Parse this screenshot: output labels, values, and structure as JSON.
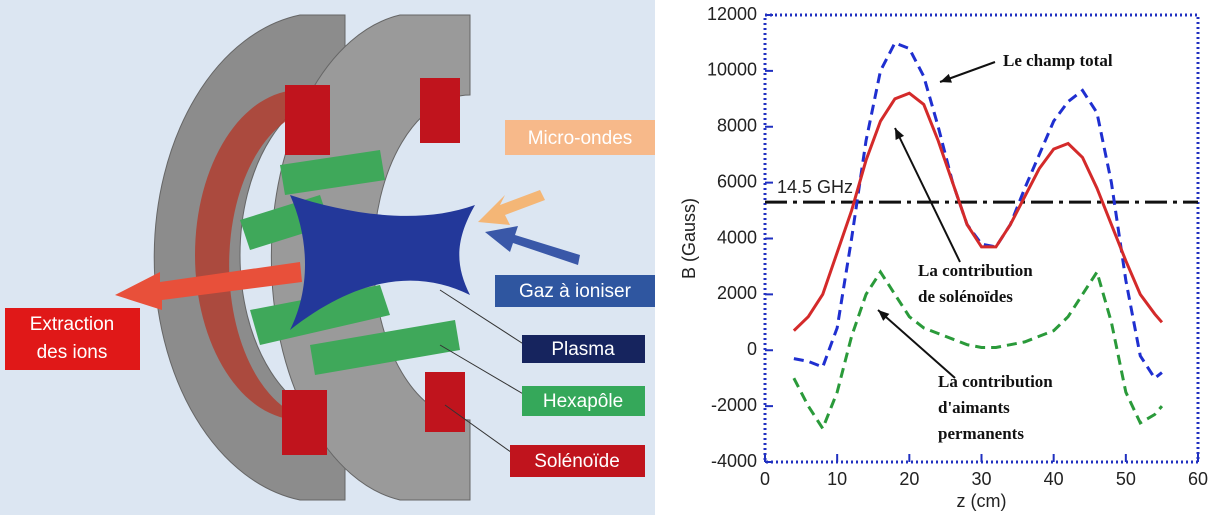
{
  "diagram": {
    "labels": {
      "microwaves": "Micro-ondes",
      "gas": "Gaz à ioniser",
      "plasma": "Plasma",
      "hexapole": "Hexapôle",
      "solenoid": "Solénoïde",
      "extraction": [
        "Extraction",
        "des ions"
      ]
    }
  },
  "chart_data": {
    "type": "line",
    "x_label": "z (cm)",
    "y_label": "B (Gauss)",
    "x": [
      4,
      6,
      8,
      10,
      12,
      14,
      16,
      18,
      20,
      22,
      24,
      26,
      28,
      30,
      32,
      34,
      36,
      38,
      40,
      42,
      44,
      46,
      48,
      50,
      52,
      54,
      55
    ],
    "series": [
      {
        "name": "Le champ total",
        "color": "#1f2fd0",
        "style": "dashed",
        "values": [
          -300,
          -400,
          -600,
          800,
          4000,
          7500,
          10000,
          11000,
          10800,
          9800,
          8000,
          6000,
          4500,
          3800,
          3700,
          4500,
          5800,
          7000,
          8200,
          8900,
          9300,
          8500,
          6000,
          2500,
          -200,
          -1000,
          -800
        ]
      },
      {
        "name": "La contribution de solénoïdes",
        "color": "#d42a2a",
        "style": "solid",
        "values": [
          700,
          1200,
          2000,
          3500,
          5000,
          6800,
          8200,
          9000,
          9200,
          8800,
          7500,
          6000,
          4500,
          3700,
          3700,
          4500,
          5500,
          6500,
          7200,
          7400,
          6900,
          5800,
          4500,
          3200,
          2000,
          1300,
          1000
        ]
      },
      {
        "name": "La contribution d'aimants permanents",
        "color": "#2a9a3a",
        "style": "dashed",
        "values": [
          -1000,
          -2000,
          -2800,
          -1500,
          500,
          2000,
          2800,
          2000,
          1200,
          800,
          600,
          400,
          200,
          100,
          100,
          200,
          300,
          500,
          700,
          1200,
          2000,
          2800,
          1000,
          -1500,
          -2600,
          -2300,
          -2000
        ]
      }
    ],
    "annotations": [
      [
        "Le champ total"
      ],
      [
        "La contribution",
        "de solénoïdes"
      ],
      [
        "La contribution",
        "d'aimants",
        "permanents"
      ]
    ],
    "hlines": [
      {
        "value": 5300,
        "label": "14.5 GHz"
      }
    ],
    "xlim": [
      0,
      60
    ],
    "xticks": [
      0,
      10,
      20,
      30,
      40,
      50,
      60
    ],
    "ylim": [
      -4000,
      12000
    ],
    "yticks": [
      -4000,
      -2000,
      0,
      2000,
      4000,
      6000,
      8000,
      10000,
      12000
    ]
  }
}
